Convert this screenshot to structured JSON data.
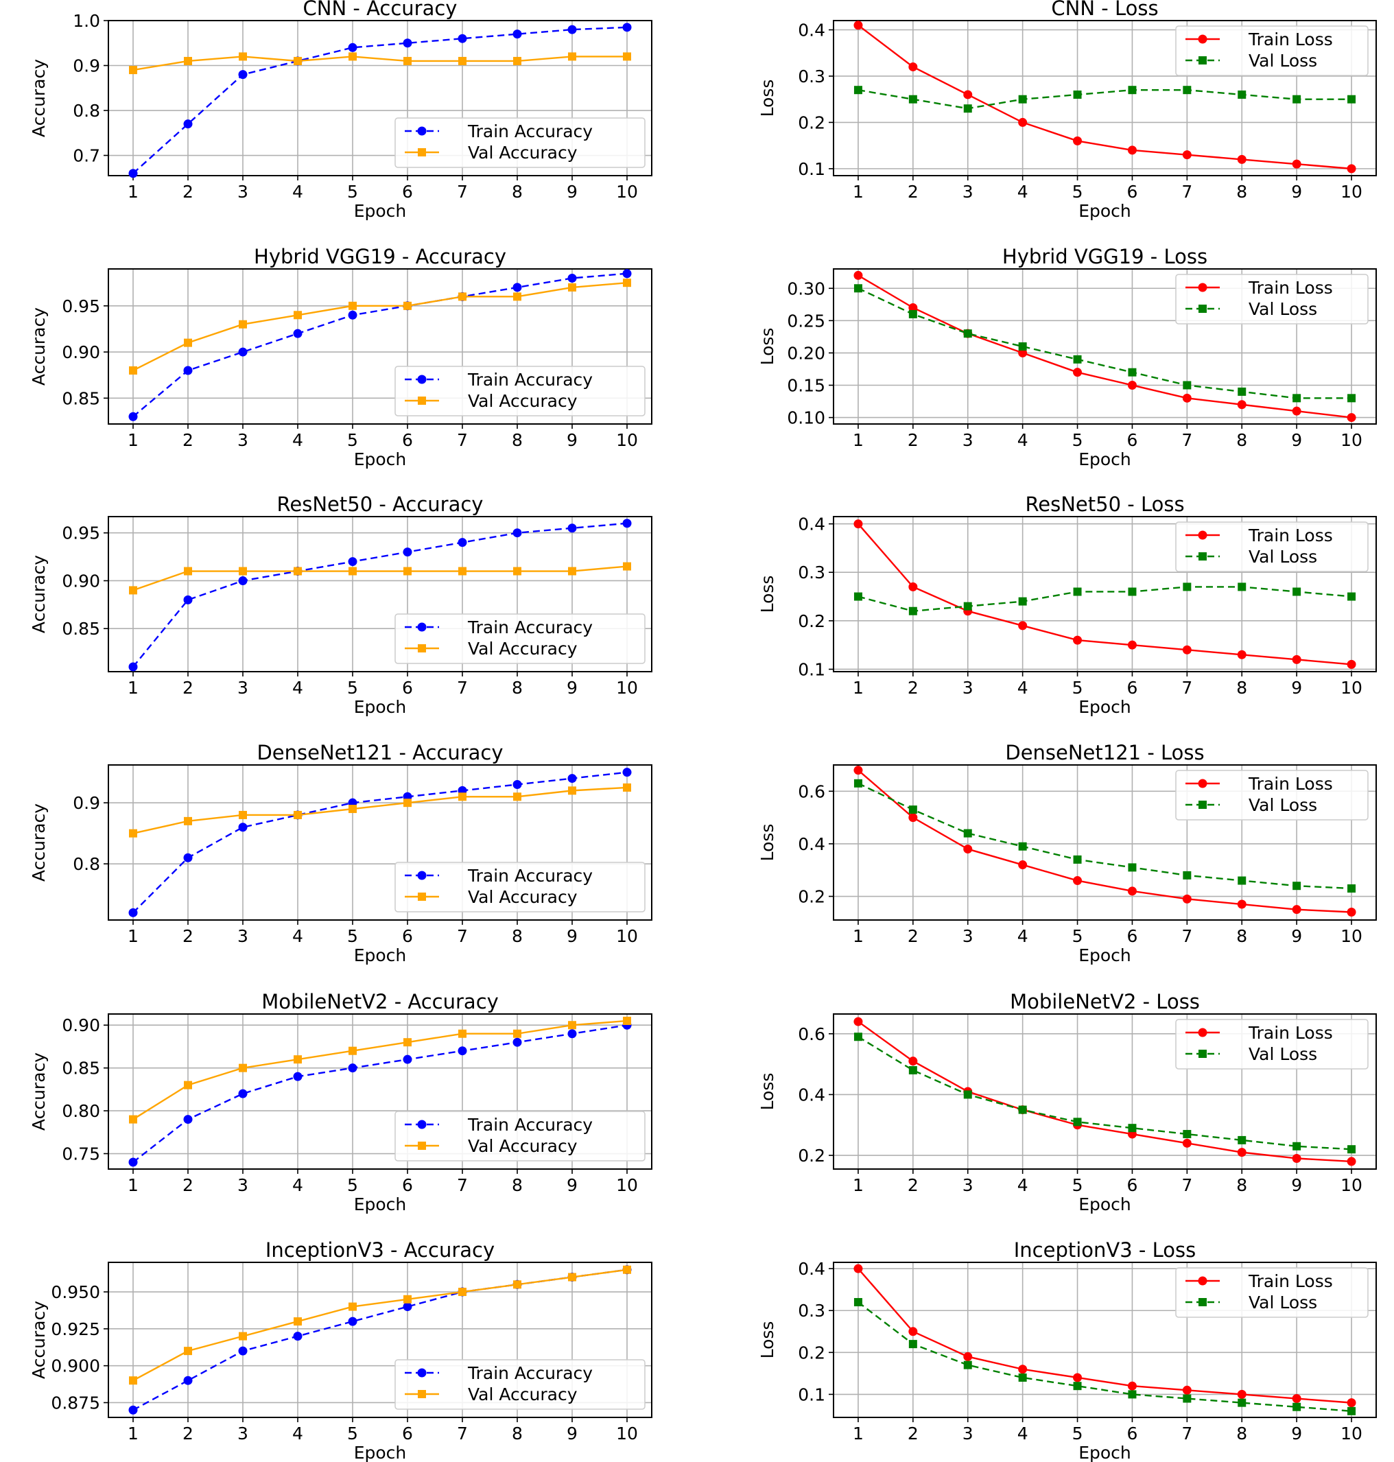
{
  "colors": {
    "train_acc": "#0000ff",
    "val_acc": "#ffa500",
    "train_loss": "#ff0000",
    "val_loss": "#008000",
    "grid": "#b0b0b0",
    "axis": "#000000"
  },
  "chart_data": [
    {
      "type": "line",
      "title": "CNN - Accuracy",
      "xlabel": "Epoch",
      "ylabel": "Accuracy",
      "x": [
        1,
        2,
        3,
        4,
        5,
        6,
        7,
        8,
        9,
        10
      ],
      "xlim": [
        0.55,
        10.45
      ],
      "ylim": [
        0.655,
        1.0
      ],
      "yticks": [
        0.7,
        0.8,
        0.9,
        1.0
      ],
      "ytick_labels": [
        "0.7",
        "0.8",
        "0.9",
        "1.0"
      ],
      "legend_location": "bottom-right",
      "series": [
        {
          "name": "Train Accuracy",
          "values": [
            0.66,
            0.77,
            0.88,
            0.91,
            0.94,
            0.95,
            0.96,
            0.97,
            0.98,
            0.985
          ],
          "color": "#0000ff",
          "style": "dashed",
          "marker": "circle"
        },
        {
          "name": "Val Accuracy",
          "values": [
            0.89,
            0.91,
            0.92,
            0.91,
            0.92,
            0.91,
            0.91,
            0.91,
            0.92,
            0.92
          ],
          "color": "#ffa500",
          "style": "solid",
          "marker": "square"
        }
      ]
    },
    {
      "type": "line",
      "title": "CNN - Loss",
      "xlabel": "Epoch",
      "ylabel": "Loss",
      "x": [
        1,
        2,
        3,
        4,
        5,
        6,
        7,
        8,
        9,
        10
      ],
      "xlim": [
        0.55,
        10.45
      ],
      "ylim": [
        0.085,
        0.42
      ],
      "yticks": [
        0.1,
        0.2,
        0.3,
        0.4
      ],
      "ytick_labels": [
        "0.1",
        "0.2",
        "0.3",
        "0.4"
      ],
      "legend_location": "top-right",
      "series": [
        {
          "name": "Train Loss",
          "values": [
            0.41,
            0.32,
            0.26,
            0.2,
            0.16,
            0.14,
            0.13,
            0.12,
            0.11,
            0.1
          ],
          "color": "#ff0000",
          "style": "solid",
          "marker": "circle"
        },
        {
          "name": "Val Loss",
          "values": [
            0.27,
            0.25,
            0.23,
            0.25,
            0.26,
            0.27,
            0.27,
            0.26,
            0.25,
            0.25
          ],
          "color": "#008000",
          "style": "dashed",
          "marker": "square"
        }
      ]
    },
    {
      "type": "line",
      "title": "Hybrid VGG19 - Accuracy",
      "xlabel": "Epoch",
      "ylabel": "Accuracy",
      "x": [
        1,
        2,
        3,
        4,
        5,
        6,
        7,
        8,
        9,
        10
      ],
      "xlim": [
        0.55,
        10.45
      ],
      "ylim": [
        0.822,
        0.99
      ],
      "yticks": [
        0.85,
        0.9,
        0.95
      ],
      "ytick_labels": [
        "0.85",
        "0.90",
        "0.95"
      ],
      "legend_location": "bottom-right",
      "series": [
        {
          "name": "Train Accuracy",
          "values": [
            0.83,
            0.88,
            0.9,
            0.92,
            0.94,
            0.95,
            0.96,
            0.97,
            0.98,
            0.985
          ],
          "color": "#0000ff",
          "style": "dashed",
          "marker": "circle"
        },
        {
          "name": "Val Accuracy",
          "values": [
            0.88,
            0.91,
            0.93,
            0.94,
            0.95,
            0.95,
            0.96,
            0.96,
            0.97,
            0.975
          ],
          "color": "#ffa500",
          "style": "solid",
          "marker": "square"
        }
      ]
    },
    {
      "type": "line",
      "title": "Hybrid VGG19 - Loss",
      "xlabel": "Epoch",
      "ylabel": "Loss",
      "x": [
        1,
        2,
        3,
        4,
        5,
        6,
        7,
        8,
        9,
        10
      ],
      "xlim": [
        0.55,
        10.45
      ],
      "ylim": [
        0.09,
        0.33
      ],
      "yticks": [
        0.1,
        0.15,
        0.2,
        0.25,
        0.3
      ],
      "ytick_labels": [
        "0.10",
        "0.15",
        "0.20",
        "0.25",
        "0.30"
      ],
      "legend_location": "top-right",
      "series": [
        {
          "name": "Train Loss",
          "values": [
            0.32,
            0.27,
            0.23,
            0.2,
            0.17,
            0.15,
            0.13,
            0.12,
            0.11,
            0.1
          ],
          "color": "#ff0000",
          "style": "solid",
          "marker": "circle"
        },
        {
          "name": "Val Loss",
          "values": [
            0.3,
            0.26,
            0.23,
            0.21,
            0.19,
            0.17,
            0.15,
            0.14,
            0.13,
            0.13
          ],
          "color": "#008000",
          "style": "dashed",
          "marker": "square"
        }
      ]
    },
    {
      "type": "line",
      "title": "ResNet50 - Accuracy",
      "xlabel": "Epoch",
      "ylabel": "Accuracy",
      "x": [
        1,
        2,
        3,
        4,
        5,
        6,
        7,
        8,
        9,
        10
      ],
      "xlim": [
        0.55,
        10.45
      ],
      "ylim": [
        0.805,
        0.967
      ],
      "yticks": [
        0.85,
        0.9,
        0.95
      ],
      "ytick_labels": [
        "0.85",
        "0.90",
        "0.95"
      ],
      "legend_location": "bottom-right",
      "series": [
        {
          "name": "Train Accuracy",
          "values": [
            0.81,
            0.88,
            0.9,
            0.91,
            0.92,
            0.93,
            0.94,
            0.95,
            0.955,
            0.96
          ],
          "color": "#0000ff",
          "style": "dashed",
          "marker": "circle"
        },
        {
          "name": "Val Accuracy",
          "values": [
            0.89,
            0.91,
            0.91,
            0.91,
            0.91,
            0.91,
            0.91,
            0.91,
            0.91,
            0.915
          ],
          "color": "#ffa500",
          "style": "solid",
          "marker": "square"
        }
      ]
    },
    {
      "type": "line",
      "title": "ResNet50 - Loss",
      "xlabel": "Epoch",
      "ylabel": "Loss",
      "x": [
        1,
        2,
        3,
        4,
        5,
        6,
        7,
        8,
        9,
        10
      ],
      "xlim": [
        0.55,
        10.45
      ],
      "ylim": [
        0.095,
        0.415
      ],
      "yticks": [
        0.1,
        0.2,
        0.3,
        0.4
      ],
      "ytick_labels": [
        "0.1",
        "0.2",
        "0.3",
        "0.4"
      ],
      "legend_location": "top-right",
      "series": [
        {
          "name": "Train Loss",
          "values": [
            0.4,
            0.27,
            0.22,
            0.19,
            0.16,
            0.15,
            0.14,
            0.13,
            0.12,
            0.11
          ],
          "color": "#ff0000",
          "style": "solid",
          "marker": "circle"
        },
        {
          "name": "Val Loss",
          "values": [
            0.25,
            0.22,
            0.23,
            0.24,
            0.26,
            0.26,
            0.27,
            0.27,
            0.26,
            0.25
          ],
          "color": "#008000",
          "style": "dashed",
          "marker": "square"
        }
      ]
    },
    {
      "type": "line",
      "title": "DenseNet121 - Accuracy",
      "xlabel": "Epoch",
      "ylabel": "Accuracy",
      "x": [
        1,
        2,
        3,
        4,
        5,
        6,
        7,
        8,
        9,
        10
      ],
      "xlim": [
        0.55,
        10.45
      ],
      "ylim": [
        0.708,
        0.962
      ],
      "yticks": [
        0.8,
        0.9
      ],
      "ytick_labels": [
        "0.8",
        "0.9"
      ],
      "legend_location": "bottom-right",
      "series": [
        {
          "name": "Train Accuracy",
          "values": [
            0.72,
            0.81,
            0.86,
            0.88,
            0.9,
            0.91,
            0.92,
            0.93,
            0.94,
            0.95
          ],
          "color": "#0000ff",
          "style": "dashed",
          "marker": "circle"
        },
        {
          "name": "Val Accuracy",
          "values": [
            0.85,
            0.87,
            0.88,
            0.88,
            0.89,
            0.9,
            0.91,
            0.91,
            0.92,
            0.925
          ],
          "color": "#ffa500",
          "style": "solid",
          "marker": "square"
        }
      ]
    },
    {
      "type": "line",
      "title": "DenseNet121 - Loss",
      "xlabel": "Epoch",
      "ylabel": "Loss",
      "x": [
        1,
        2,
        3,
        4,
        5,
        6,
        7,
        8,
        9,
        10
      ],
      "xlim": [
        0.55,
        10.45
      ],
      "ylim": [
        0.11,
        0.7
      ],
      "yticks": [
        0.2,
        0.4,
        0.6
      ],
      "ytick_labels": [
        "0.2",
        "0.4",
        "0.6"
      ],
      "legend_location": "top-right",
      "series": [
        {
          "name": "Train Loss",
          "values": [
            0.68,
            0.5,
            0.38,
            0.32,
            0.26,
            0.22,
            0.19,
            0.17,
            0.15,
            0.14
          ],
          "color": "#ff0000",
          "style": "solid",
          "marker": "circle"
        },
        {
          "name": "Val Loss",
          "values": [
            0.63,
            0.53,
            0.44,
            0.39,
            0.34,
            0.31,
            0.28,
            0.26,
            0.24,
            0.23
          ],
          "color": "#008000",
          "style": "dashed",
          "marker": "square"
        }
      ]
    },
    {
      "type": "line",
      "title": "MobileNetV2 - Accuracy",
      "xlabel": "Epoch",
      "ylabel": "Accuracy",
      "x": [
        1,
        2,
        3,
        4,
        5,
        6,
        7,
        8,
        9,
        10
      ],
      "xlim": [
        0.55,
        10.45
      ],
      "ylim": [
        0.732,
        0.913
      ],
      "yticks": [
        0.75,
        0.8,
        0.85,
        0.9
      ],
      "ytick_labels": [
        "0.75",
        "0.80",
        "0.85",
        "0.90"
      ],
      "legend_location": "bottom-right",
      "series": [
        {
          "name": "Train Accuracy",
          "values": [
            0.74,
            0.79,
            0.82,
            0.84,
            0.85,
            0.86,
            0.87,
            0.88,
            0.89,
            0.9
          ],
          "color": "#0000ff",
          "style": "dashed",
          "marker": "circle"
        },
        {
          "name": "Val Accuracy",
          "values": [
            0.79,
            0.83,
            0.85,
            0.86,
            0.87,
            0.88,
            0.89,
            0.89,
            0.9,
            0.905
          ],
          "color": "#ffa500",
          "style": "solid",
          "marker": "square"
        }
      ]
    },
    {
      "type": "line",
      "title": "MobileNetV2 - Loss",
      "xlabel": "Epoch",
      "ylabel": "Loss",
      "x": [
        1,
        2,
        3,
        4,
        5,
        6,
        7,
        8,
        9,
        10
      ],
      "xlim": [
        0.55,
        10.45
      ],
      "ylim": [
        0.155,
        0.665
      ],
      "yticks": [
        0.2,
        0.4,
        0.6
      ],
      "ytick_labels": [
        "0.2",
        "0.4",
        "0.6"
      ],
      "legend_location": "top-right",
      "series": [
        {
          "name": "Train Loss",
          "values": [
            0.64,
            0.51,
            0.41,
            0.35,
            0.3,
            0.27,
            0.24,
            0.21,
            0.19,
            0.18
          ],
          "color": "#ff0000",
          "style": "solid",
          "marker": "circle"
        },
        {
          "name": "Val Loss",
          "values": [
            0.59,
            0.48,
            0.4,
            0.35,
            0.31,
            0.29,
            0.27,
            0.25,
            0.23,
            0.22
          ],
          "color": "#008000",
          "style": "dashed",
          "marker": "square"
        }
      ]
    },
    {
      "type": "line",
      "title": "InceptionV3 - Accuracy",
      "xlabel": "Epoch",
      "ylabel": "Accuracy",
      "x": [
        1,
        2,
        3,
        4,
        5,
        6,
        7,
        8,
        9,
        10
      ],
      "xlim": [
        0.55,
        10.45
      ],
      "ylim": [
        0.865,
        0.97
      ],
      "yticks": [
        0.875,
        0.9,
        0.925,
        0.95
      ],
      "ytick_labels": [
        "0.875",
        "0.900",
        "0.925",
        "0.950"
      ],
      "legend_location": "bottom-right",
      "series": [
        {
          "name": "Train Accuracy",
          "values": [
            0.87,
            0.89,
            0.91,
            0.92,
            0.93,
            0.94,
            0.95,
            0.955,
            0.96,
            0.965
          ],
          "color": "#0000ff",
          "style": "dashed",
          "marker": "circle"
        },
        {
          "name": "Val Accuracy",
          "values": [
            0.89,
            0.91,
            0.92,
            0.93,
            0.94,
            0.945,
            0.95,
            0.955,
            0.96,
            0.965
          ],
          "color": "#ffa500",
          "style": "solid",
          "marker": "square"
        }
      ]
    },
    {
      "type": "line",
      "title": "InceptionV3 - Loss",
      "xlabel": "Epoch",
      "ylabel": "Loss",
      "x": [
        1,
        2,
        3,
        4,
        5,
        6,
        7,
        8,
        9,
        10
      ],
      "xlim": [
        0.55,
        10.45
      ],
      "ylim": [
        0.045,
        0.415
      ],
      "yticks": [
        0.1,
        0.2,
        0.3,
        0.4
      ],
      "ytick_labels": [
        "0.1",
        "0.2",
        "0.3",
        "0.4"
      ],
      "legend_location": "top-right",
      "series": [
        {
          "name": "Train Loss",
          "values": [
            0.4,
            0.25,
            0.19,
            0.16,
            0.14,
            0.12,
            0.11,
            0.1,
            0.09,
            0.08
          ],
          "color": "#ff0000",
          "style": "solid",
          "marker": "circle"
        },
        {
          "name": "Val Loss",
          "values": [
            0.32,
            0.22,
            0.17,
            0.14,
            0.12,
            0.1,
            0.09,
            0.08,
            0.07,
            0.06
          ],
          "color": "#008000",
          "style": "dashed",
          "marker": "square"
        }
      ]
    }
  ]
}
